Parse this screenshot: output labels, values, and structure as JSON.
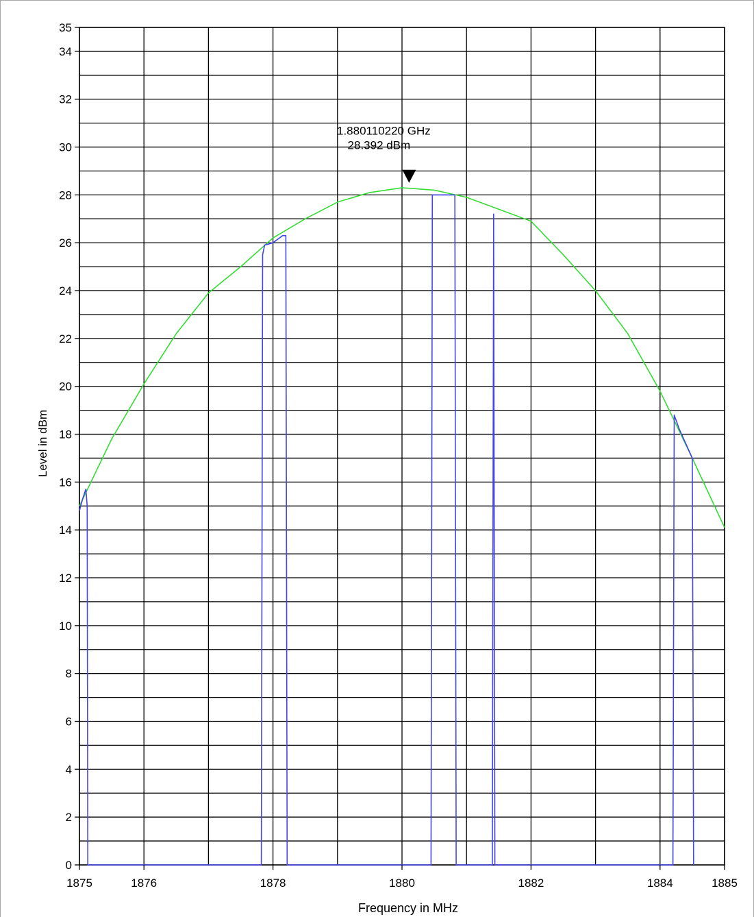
{
  "chart_data": {
    "type": "line",
    "xlabel": "Frequency in MHz",
    "ylabel": "Level in dBm",
    "xlim": [
      1875,
      1885
    ],
    "ylim": [
      0,
      35
    ],
    "x_ticks": [
      1875,
      1876,
      1878,
      1880,
      1882,
      1884,
      1885
    ],
    "y_ticks": [
      0,
      2,
      4,
      6,
      8,
      10,
      12,
      14,
      16,
      18,
      20,
      22,
      24,
      26,
      28,
      30,
      32,
      34,
      35
    ],
    "x_gridlines": [
      1875,
      1876,
      1877,
      1878,
      1879,
      1880,
      1881,
      1882,
      1883,
      1884,
      1885
    ],
    "y_gridline_step": 1,
    "grid": true,
    "marker": {
      "x": 1880.11022,
      "y": 28.392,
      "freq_label": "1.880110220 GHz",
      "level_label": "28.392 dBm"
    },
    "series": [
      {
        "color": "#33dd33",
        "x": [
          1875,
          1875.5,
          1876,
          1876.5,
          1877,
          1877.5,
          1878,
          1878.5,
          1879,
          1879.5,
          1880,
          1880.5,
          1881,
          1881.5,
          1882,
          1882.5,
          1883,
          1883.5,
          1884,
          1884.5,
          1885
        ],
        "y": [
          15.0,
          17.8,
          20.1,
          22.2,
          23.9,
          25.0,
          26.2,
          27.0,
          27.7,
          28.1,
          28.3,
          28.2,
          27.9,
          27.4,
          26.9,
          25.5,
          24.0,
          22.2,
          19.8,
          17.0,
          14.1
        ]
      },
      {
        "color": "#4444ee",
        "x": [
          1875,
          1875.05,
          1875.1,
          1875.12,
          1875.13,
          1877.82,
          1877.84,
          1877.87,
          1878.0,
          1878.15,
          1878.2,
          1878.22,
          1880.45,
          1880.47,
          1880.8,
          1880.82,
          1880.84,
          1881.4,
          1881.42,
          1881.44,
          1884.2,
          1884.22,
          1884.3,
          1884.45,
          1884.5,
          1884.52
        ],
        "y": [
          14.8,
          15.3,
          15.7,
          15.0,
          0,
          0,
          25.5,
          25.9,
          26.0,
          26.3,
          26.3,
          0,
          0,
          28.0,
          28.0,
          28.0,
          0,
          0,
          27.2,
          0,
          0,
          18.8,
          18.2,
          17.3,
          17.0,
          0
        ]
      }
    ]
  }
}
